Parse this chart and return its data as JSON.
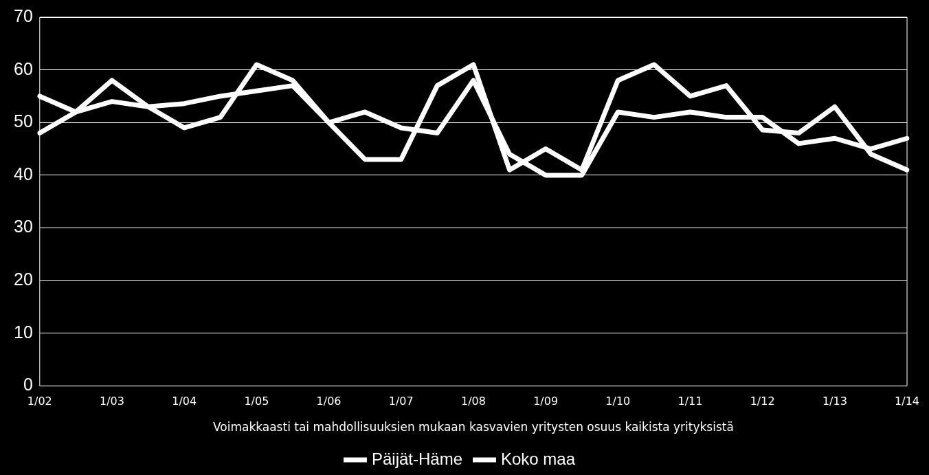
{
  "chart_data": {
    "type": "line",
    "xlabel": "Voimakkaasti tai mahdollisuuksien mukaan kasvavien yritysten osuus kaikista yrityksistä",
    "categories": [
      "1/02",
      null,
      "1/03",
      null,
      "1/04",
      null,
      "1/05",
      null,
      "1/06",
      null,
      "1/07",
      null,
      "1/08",
      null,
      "1/09",
      null,
      "1/10",
      null,
      "1/11",
      null,
      "1/12",
      null,
      "1/13",
      null,
      "1/14"
    ],
    "series": [
      {
        "name": "Päijät-Häme",
        "color": "#ffffff",
        "values": [
          48,
          52,
          58,
          53,
          49,
          51,
          61,
          58,
          50,
          43,
          43,
          57,
          61,
          41,
          45,
          41,
          58,
          61,
          55,
          57,
          48.6,
          48,
          53,
          44,
          41
        ]
      },
      {
        "name": "Koko maa",
        "color": "#ffffff",
        "values": [
          55,
          52,
          54,
          53,
          53.6,
          55,
          56,
          57,
          50,
          52,
          49,
          48,
          58,
          44,
          40,
          40,
          52,
          51,
          52,
          51,
          51,
          46,
          47,
          45,
          47
        ]
      }
    ],
    "ylim": [
      0,
      70
    ],
    "yticks": [
      0,
      10,
      20,
      30,
      40,
      50,
      60,
      70
    ],
    "grid": "y",
    "legend": "bottom",
    "marker": "none",
    "line_style": "solid"
  }
}
